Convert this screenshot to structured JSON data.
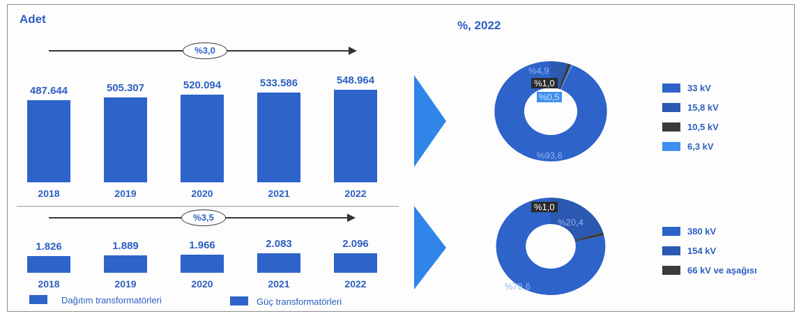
{
  "units_label": "Adet",
  "pie_title": "%, 2022",
  "colors": {
    "bar": "#2e63c9",
    "s1": "#2e63c9",
    "s2": "#2b58b0",
    "s3": "#3b3b3b",
    "s4": "#3f8ff0"
  },
  "chart_data": [
    {
      "type": "bar",
      "categories": [
        "2018",
        "2019",
        "2020",
        "2021",
        "2022"
      ],
      "values": [
        487644,
        505307,
        520094,
        533586,
        548964
      ],
      "value_labels": [
        "487.644",
        "505.307",
        "520.094",
        "533.586",
        "548.964"
      ],
      "growth": "%3,0",
      "series_name": "Dağıtım transformatörleri"
    },
    {
      "type": "bar",
      "categories": [
        "2018",
        "2019",
        "2020",
        "2021",
        "2022"
      ],
      "values": [
        1826,
        1889,
        1966,
        2083,
        2096
      ],
      "value_labels": [
        "1.826",
        "1.889",
        "1.966",
        "2.083",
        "2.096"
      ],
      "growth": "%3,5",
      "series_name": "Güç transformatörleri"
    },
    {
      "type": "pie",
      "labels": [
        "33 kV",
        "15,8 kV",
        "10,5 kV",
        "6,3 kV"
      ],
      "values": [
        93.6,
        4.9,
        1.0,
        0.5
      ],
      "value_labels": [
        "%93,6",
        "%4,9",
        "%1,0",
        "%0,5"
      ]
    },
    {
      "type": "pie",
      "labels": [
        "380 kV",
        "154 kV",
        "66 kV ve aşağısı"
      ],
      "values": [
        78.6,
        20.4,
        1.0
      ],
      "value_labels": [
        "%78,6",
        "%20,4",
        "%1,0"
      ]
    }
  ]
}
